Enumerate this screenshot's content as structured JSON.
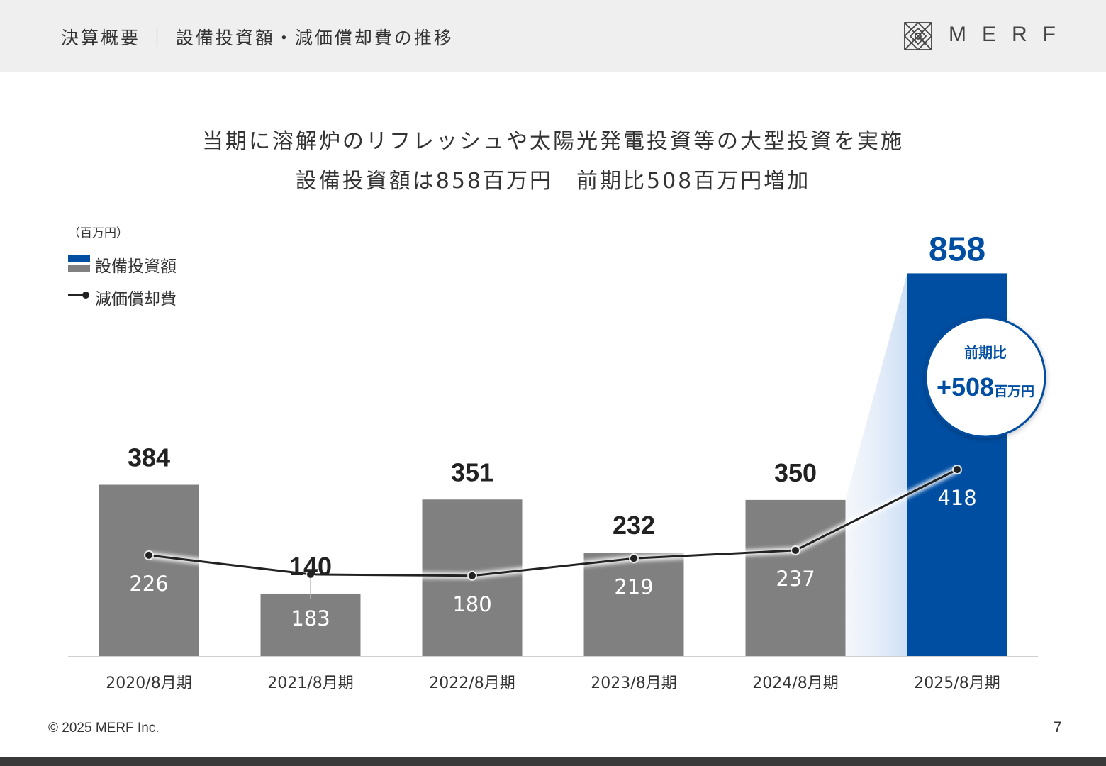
{
  "header": {
    "title": "決算概要 ｜ 設備投資額・減価償却費の推移",
    "logo_text": "MERF"
  },
  "headline": {
    "line1": "当期に溶解炉のリフレッシュや太陽光発電投資等の大型投資を実施",
    "line2": "設備投資額は858百万円　前期比508百万円増加"
  },
  "colors": {
    "bar_past": "#808080",
    "bar_current": "#004ea2",
    "line": "#222222",
    "callout_text": "#004ea2"
  },
  "chart_data": {
    "type": "bar",
    "unit": "（百万円）",
    "categories": [
      "2020/8月期",
      "2021/8月期",
      "2022/8月期",
      "2023/8月期",
      "2024/8月期",
      "2025/8月期"
    ],
    "series": [
      {
        "name": "設備投資額",
        "type": "bar",
        "values": [
          384,
          140,
          351,
          232,
          350,
          858
        ]
      },
      {
        "name": "減価償却費",
        "type": "line",
        "values": [
          226,
          183,
          180,
          219,
          237,
          418
        ]
      }
    ],
    "ylim": [
      0,
      858
    ],
    "grid": false,
    "legend": "top-left",
    "callout": {
      "label": "前期比",
      "value": "+508",
      "unit": "百万円"
    }
  },
  "footer": {
    "copyright": "© 2025  MERF Inc.",
    "page": "7"
  }
}
